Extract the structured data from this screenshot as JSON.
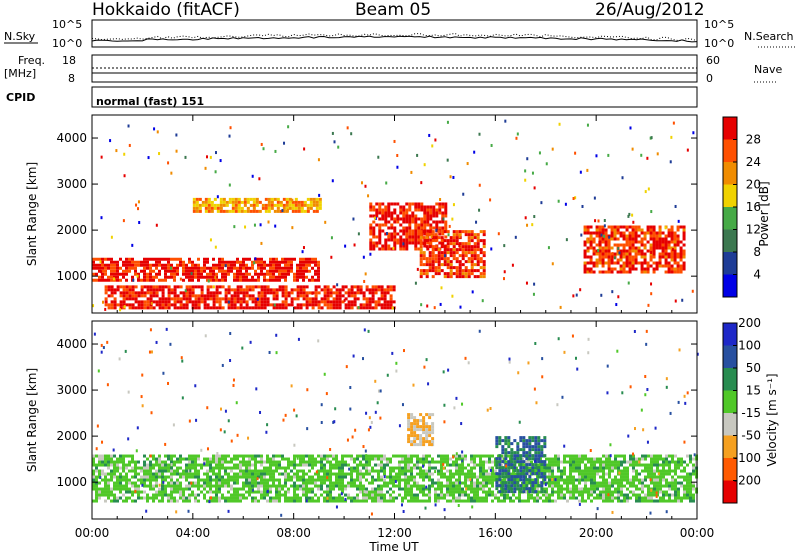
{
  "header": {
    "site": "Hokkaido (fitACF)",
    "beam": "Beam 05",
    "date": "26/Aug/2012"
  },
  "noise_panel": {
    "left_label": "N.Sky",
    "right_label": "N.Search",
    "tick_top": "10^5",
    "tick_bottom": "10^0"
  },
  "freq_panel": {
    "label_line1": "Freq.",
    "label_line2": "[MHz]",
    "left_ticks": [
      "18",
      "8"
    ],
    "right_ticks": [
      "60",
      "0"
    ],
    "right_label": "Nave"
  },
  "cpid_panel": {
    "label": "CPID",
    "value": "normal (fast) 151"
  },
  "power_panel": {
    "ylabel": "Slant Range [km]",
    "yticks": [
      "1000",
      "2000",
      "3000",
      "4000"
    ],
    "colorbar_label": "Power [dB]",
    "colorbar_ticks": [
      "4",
      "8",
      "12",
      "16",
      "20",
      "24",
      "28"
    ],
    "colorbar_colors": [
      "#0000e6",
      "#1e3c96",
      "#3c7850",
      "#46aa46",
      "#f0d200",
      "#f08c00",
      "#ff5000",
      "#e60000"
    ]
  },
  "velocity_panel": {
    "ylabel": "Slant Range [km]",
    "yticks": [
      "1000",
      "2000",
      "3000",
      "4000"
    ],
    "colorbar_label": "Velocity [m s⁻¹]",
    "colorbar_ticks": [
      "-200",
      "-100",
      "-50",
      "-15",
      "15",
      "50",
      "100",
      "200"
    ],
    "colorbar_colors": [
      "#e60000",
      "#ff5a00",
      "#f5a020",
      "#c8c8c0",
      "#50c828",
      "#288c50",
      "#2850a0",
      "#1e28c8"
    ]
  },
  "xaxis": {
    "label": "Time UT",
    "ticks": [
      "00:00",
      "04:00",
      "08:00",
      "12:00",
      "16:00",
      "20:00",
      "00:00"
    ]
  },
  "chart_data": [
    {
      "type": "line",
      "title": "Hokkaido (fitACF) Beam 05 26/Aug/2012",
      "series": [
        {
          "name": "N.Sky"
        },
        {
          "name": "N.Search"
        }
      ],
      "ylim": [
        1,
        100000
      ],
      "log_y": true
    },
    {
      "type": "line",
      "series": [
        {
          "name": "Freq.",
          "values_approx": [
            10.5,
            10.5
          ]
        },
        {
          "name": "Nave",
          "values_approx": [
            40,
            40
          ]
        }
      ],
      "ylim_left": [
        8,
        18
      ],
      "ylim_right": [
        0,
        60
      ]
    },
    {
      "type": "heatmap",
      "quantity": "Power [dB]",
      "x_range_hours": [
        0,
        24
      ],
      "ylim_km": [
        200,
        4500
      ],
      "clim": [
        0,
        30
      ],
      "bands": [
        {
          "t": [
            0,
            9
          ],
          "range_km": [
            900,
            1400
          ],
          "dB": 28
        },
        {
          "t": [
            0.5,
            12
          ],
          "range_km": [
            300,
            800
          ],
          "dB": 28
        },
        {
          "t": [
            4,
            9
          ],
          "range_km": [
            2400,
            2700
          ],
          "dB": 20
        },
        {
          "t": [
            11,
            14
          ],
          "range_km": [
            1600,
            2600
          ],
          "dB": 28
        },
        {
          "t": [
            13,
            15.5
          ],
          "range_km": [
            1000,
            2000
          ],
          "dB": 26
        },
        {
          "t": [
            19.5,
            23.5
          ],
          "range_km": [
            1100,
            2100
          ],
          "dB": 26
        }
      ]
    },
    {
      "type": "heatmap",
      "quantity": "Velocity [m s^-1]",
      "x_range_hours": [
        0,
        24
      ],
      "ylim_km": [
        200,
        4500
      ],
      "clim": [
        -200,
        200
      ],
      "bands": [
        {
          "t": [
            0,
            24
          ],
          "range_km": [
            600,
            1600
          ],
          "velocity": 0
        },
        {
          "t": [
            12.5,
            13.5
          ],
          "range_km": [
            1800,
            2500
          ],
          "velocity": -50
        },
        {
          "t": [
            16,
            18
          ],
          "range_km": [
            800,
            2000
          ],
          "velocity": 50
        }
      ]
    }
  ]
}
